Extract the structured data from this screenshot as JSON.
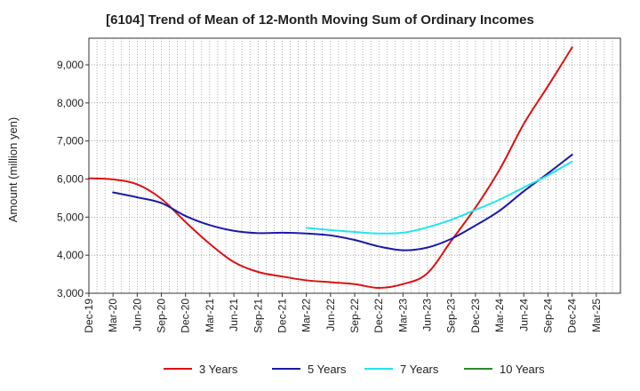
{
  "chart_data": {
    "type": "line",
    "title": "[6104]  Trend of Mean of 12-Month Moving Sum of Ordinary Incomes",
    "ylabel": "Amount (million yen)",
    "xlabel": "",
    "ylim": [
      3000,
      9700
    ],
    "yticks": [
      3000,
      4000,
      5000,
      6000,
      7000,
      8000,
      9000
    ],
    "ytick_labels": [
      "3,000",
      "4,000",
      "5,000",
      "6,000",
      "7,000",
      "8,000",
      "9,000"
    ],
    "x_tick_labels": [
      "Dec-19",
      "Mar-20",
      "Jun-20",
      "Sep-20",
      "Dec-20",
      "Mar-21",
      "Jun-21",
      "Sep-21",
      "Dec-21",
      "Mar-22",
      "Jun-22",
      "Sep-22",
      "Dec-22",
      "Mar-23",
      "Jun-23",
      "Sep-23",
      "Dec-23",
      "Mar-24",
      "Jun-24",
      "Sep-24",
      "Dec-24",
      "Mar-25"
    ],
    "grid": true,
    "legend_position": "bottom",
    "series": [
      {
        "name": "3 Years",
        "color": "#dd1111",
        "values": [
          6020,
          5990,
          5860,
          5480,
          4870,
          4300,
          3820,
          3560,
          3440,
          3340,
          3290,
          3240,
          3140,
          3240,
          3520,
          4380,
          5250,
          6250,
          7450,
          8440,
          9460
        ]
      },
      {
        "name": "5 Years",
        "color": "#1a1aaa",
        "start_index": 1,
        "values": [
          5650,
          5520,
          5370,
          5030,
          4790,
          4640,
          4580,
          4590,
          4570,
          4520,
          4400,
          4230,
          4130,
          4200,
          4430,
          4780,
          5170,
          5680,
          6150,
          6640
        ]
      },
      {
        "name": "7 Years",
        "color": "#22e5ee",
        "start_index": 9,
        "values": [
          4720,
          4660,
          4610,
          4570,
          4590,
          4730,
          4930,
          5190,
          5460,
          5780,
          6100,
          6460
        ]
      },
      {
        "name": "10 Years",
        "color": "#2a8a2a",
        "values": []
      }
    ]
  }
}
